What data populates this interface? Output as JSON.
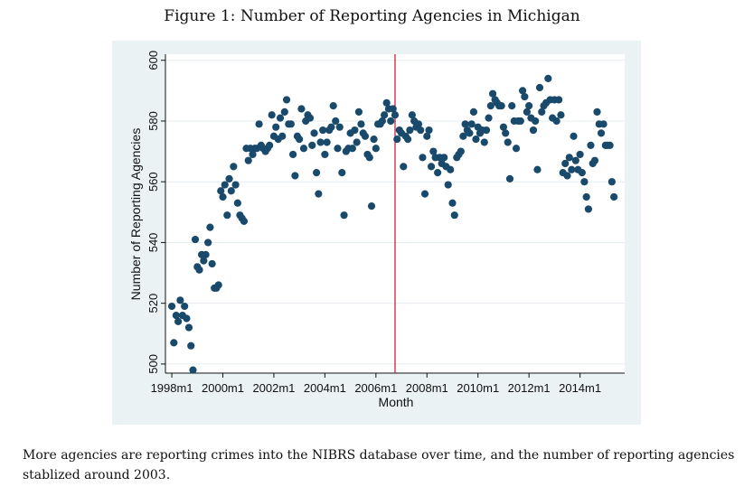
{
  "figure_title": "Figure 1: Number of Reporting Agencies in Michigan",
  "caption": "More agencies are reporting crimes into the NIBRS database over time, and the number of reporting agencies stablized around 2003.",
  "chart_data": {
    "type": "scatter",
    "title": "Figure 1: Number of Reporting Agencies in Michigan",
    "xlabel": "Month",
    "ylabel": "Number of Reporting Agencies",
    "x_unit": "year (fractional)",
    "xlim": [
      1997.75,
      2015.75
    ],
    "ylim": [
      497,
      602
    ],
    "x_ticks": [
      {
        "value": 1998,
        "label": "1998m1"
      },
      {
        "value": 2000,
        "label": "2000m1"
      },
      {
        "value": 2002,
        "label": "2002m1"
      },
      {
        "value": 2004,
        "label": "2004m1"
      },
      {
        "value": 2006,
        "label": "2006m1"
      },
      {
        "value": 2008,
        "label": "2008m1"
      },
      {
        "value": 2010,
        "label": "2010m1"
      },
      {
        "value": 2012,
        "label": "2012m1"
      },
      {
        "value": 2014,
        "label": "2014m1"
      }
    ],
    "y_ticks": [
      500,
      520,
      540,
      560,
      580,
      600
    ],
    "grid": true,
    "marker_color": "#1a4a6b",
    "vline": {
      "x": 2006.75,
      "color": "#c8102e"
    },
    "points": [
      [
        1998.0,
        519
      ],
      [
        1998.08,
        507
      ],
      [
        1998.17,
        516
      ],
      [
        1998.25,
        514
      ],
      [
        1998.33,
        521
      ],
      [
        1998.42,
        516
      ],
      [
        1998.5,
        519
      ],
      [
        1998.58,
        515
      ],
      [
        1998.67,
        512
      ],
      [
        1998.75,
        506
      ],
      [
        1998.83,
        498
      ],
      [
        1998.92,
        541
      ],
      [
        1999.0,
        532
      ],
      [
        1999.08,
        531
      ],
      [
        1999.17,
        536
      ],
      [
        1999.25,
        534
      ],
      [
        1999.33,
        536
      ],
      [
        1999.42,
        540
      ],
      [
        1999.5,
        545
      ],
      [
        1999.58,
        533
      ],
      [
        1999.67,
        525
      ],
      [
        1999.75,
        525
      ],
      [
        1999.83,
        526
      ],
      [
        1999.92,
        557
      ],
      [
        2000.0,
        555
      ],
      [
        2000.08,
        559
      ],
      [
        2000.17,
        549
      ],
      [
        2000.25,
        561
      ],
      [
        2000.33,
        557
      ],
      [
        2000.42,
        565
      ],
      [
        2000.5,
        559
      ],
      [
        2000.58,
        553
      ],
      [
        2000.67,
        549
      ],
      [
        2000.75,
        548
      ],
      [
        2000.83,
        547
      ],
      [
        2000.92,
        571
      ],
      [
        2001.0,
        567
      ],
      [
        2001.08,
        571
      ],
      [
        2001.17,
        569
      ],
      [
        2001.25,
        571
      ],
      [
        2001.33,
        571
      ],
      [
        2001.42,
        579
      ],
      [
        2001.5,
        572
      ],
      [
        2001.58,
        571
      ],
      [
        2001.67,
        570
      ],
      [
        2001.75,
        571
      ],
      [
        2001.83,
        572
      ],
      [
        2001.92,
        582
      ],
      [
        2002.0,
        575
      ],
      [
        2002.08,
        578
      ],
      [
        2002.17,
        574
      ],
      [
        2002.25,
        581
      ],
      [
        2002.33,
        575
      ],
      [
        2002.42,
        583
      ],
      [
        2002.5,
        587
      ],
      [
        2002.58,
        579
      ],
      [
        2002.67,
        579
      ],
      [
        2002.75,
        569
      ],
      [
        2002.83,
        562
      ],
      [
        2002.92,
        575
      ],
      [
        2003.0,
        574
      ],
      [
        2003.08,
        584
      ],
      [
        2003.17,
        571
      ],
      [
        2003.25,
        580
      ],
      [
        2003.33,
        582
      ],
      [
        2003.42,
        581
      ],
      [
        2003.5,
        572
      ],
      [
        2003.58,
        576
      ],
      [
        2003.67,
        563
      ],
      [
        2003.75,
        556
      ],
      [
        2003.83,
        573
      ],
      [
        2003.92,
        577
      ],
      [
        2004.0,
        569
      ],
      [
        2004.08,
        573
      ],
      [
        2004.17,
        577
      ],
      [
        2004.25,
        578
      ],
      [
        2004.33,
        585
      ],
      [
        2004.42,
        580
      ],
      [
        2004.5,
        571
      ],
      [
        2004.58,
        578
      ],
      [
        2004.67,
        563
      ],
      [
        2004.75,
        549
      ],
      [
        2004.83,
        570
      ],
      [
        2004.92,
        571
      ],
      [
        2005.0,
        576
      ],
      [
        2005.08,
        571
      ],
      [
        2005.17,
        577
      ],
      [
        2005.25,
        573
      ],
      [
        2005.33,
        583
      ],
      [
        2005.42,
        579
      ],
      [
        2005.5,
        576
      ],
      [
        2005.58,
        575
      ],
      [
        2005.67,
        569
      ],
      [
        2005.75,
        568
      ],
      [
        2005.83,
        552
      ],
      [
        2005.92,
        574
      ],
      [
        2006.0,
        571
      ],
      [
        2006.08,
        579
      ],
      [
        2006.17,
        579
      ],
      [
        2006.25,
        580
      ],
      [
        2006.33,
        582
      ],
      [
        2006.42,
        586
      ],
      [
        2006.5,
        584
      ],
      [
        2006.58,
        580
      ],
      [
        2006.67,
        584
      ],
      [
        2006.75,
        582
      ],
      [
        2006.83,
        574
      ],
      [
        2006.92,
        577
      ],
      [
        2007.0,
        576
      ],
      [
        2007.08,
        565
      ],
      [
        2007.17,
        575
      ],
      [
        2007.25,
        574
      ],
      [
        2007.33,
        577
      ],
      [
        2007.42,
        582
      ],
      [
        2007.5,
        580
      ],
      [
        2007.58,
        578
      ],
      [
        2007.67,
        579
      ],
      [
        2007.75,
        577
      ],
      [
        2007.83,
        568
      ],
      [
        2007.92,
        556
      ],
      [
        2008.0,
        575
      ],
      [
        2008.08,
        577
      ],
      [
        2008.17,
        565
      ],
      [
        2008.25,
        570
      ],
      [
        2008.33,
        568
      ],
      [
        2008.42,
        563
      ],
      [
        2008.5,
        568
      ],
      [
        2008.58,
        566
      ],
      [
        2008.67,
        568
      ],
      [
        2008.75,
        565
      ],
      [
        2008.83,
        559
      ],
      [
        2008.92,
        564
      ],
      [
        2009.0,
        553
      ],
      [
        2009.08,
        549
      ],
      [
        2009.17,
        568
      ],
      [
        2009.25,
        569
      ],
      [
        2009.33,
        570
      ],
      [
        2009.42,
        575
      ],
      [
        2009.5,
        579
      ],
      [
        2009.58,
        577
      ],
      [
        2009.67,
        576
      ],
      [
        2009.75,
        579
      ],
      [
        2009.83,
        583
      ],
      [
        2009.92,
        574
      ],
      [
        2010.0,
        578
      ],
      [
        2010.08,
        576
      ],
      [
        2010.17,
        577
      ],
      [
        2010.25,
        573
      ],
      [
        2010.33,
        577
      ],
      [
        2010.42,
        581
      ],
      [
        2010.5,
        585
      ],
      [
        2010.58,
        589
      ],
      [
        2010.67,
        587
      ],
      [
        2010.75,
        586
      ],
      [
        2010.83,
        585
      ],
      [
        2010.92,
        585
      ],
      [
        2011.0,
        578
      ],
      [
        2011.08,
        576
      ],
      [
        2011.17,
        573
      ],
      [
        2011.25,
        561
      ],
      [
        2011.33,
        585
      ],
      [
        2011.42,
        580
      ],
      [
        2011.5,
        571
      ],
      [
        2011.58,
        580
      ],
      [
        2011.67,
        580
      ],
      [
        2011.75,
        590
      ],
      [
        2011.83,
        588
      ],
      [
        2011.92,
        583
      ],
      [
        2012.0,
        585
      ],
      [
        2012.08,
        581
      ],
      [
        2012.17,
        577
      ],
      [
        2012.25,
        580
      ],
      [
        2012.33,
        564
      ],
      [
        2012.42,
        591
      ],
      [
        2012.5,
        583
      ],
      [
        2012.58,
        585
      ],
      [
        2012.67,
        586
      ],
      [
        2012.75,
        594
      ],
      [
        2012.83,
        587
      ],
      [
        2012.92,
        581
      ],
      [
        2013.0,
        587
      ],
      [
        2013.08,
        580
      ],
      [
        2013.17,
        587
      ],
      [
        2013.25,
        582
      ],
      [
        2013.33,
        563
      ],
      [
        2013.42,
        566
      ],
      [
        2013.5,
        562
      ],
      [
        2013.58,
        568
      ],
      [
        2013.67,
        564
      ],
      [
        2013.75,
        575
      ],
      [
        2013.83,
        567
      ],
      [
        2013.92,
        564
      ],
      [
        2014.0,
        569
      ],
      [
        2014.08,
        563
      ],
      [
        2014.17,
        560
      ],
      [
        2014.25,
        555
      ],
      [
        2014.33,
        551
      ],
      [
        2014.42,
        572
      ],
      [
        2014.5,
        566
      ],
      [
        2014.58,
        567
      ],
      [
        2014.67,
        583
      ],
      [
        2014.75,
        579
      ],
      [
        2014.83,
        576
      ],
      [
        2014.92,
        579
      ],
      [
        2015.0,
        572
      ],
      [
        2015.08,
        572
      ],
      [
        2015.17,
        572
      ],
      [
        2015.25,
        560
      ],
      [
        2015.33,
        555
      ]
    ]
  }
}
